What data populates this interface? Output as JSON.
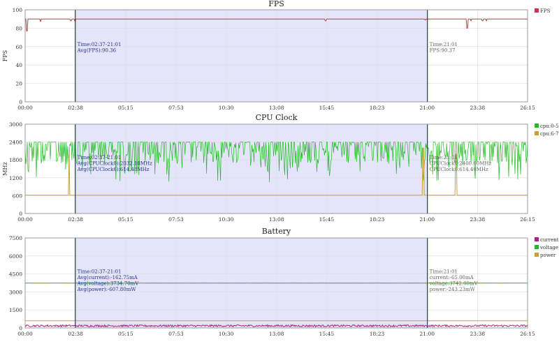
{
  "chart_data": [
    {
      "type": "line",
      "title": "FPS",
      "ylabel": "FPS",
      "ylim": [
        0,
        100
      ],
      "yticks": [
        "0",
        "20",
        "40",
        "60",
        "80",
        "100"
      ],
      "xticks": [
        "00:00",
        "02:38",
        "05:15",
        "07:53",
        "10:30",
        "13:08",
        "15:45",
        "18:23",
        "21:00",
        "23:38",
        "26:15"
      ],
      "selection": {
        "start": "02:37",
        "end": "21:01"
      },
      "series": [
        {
          "name": "FPS",
          "color": "#cc3344",
          "base": 90,
          "low": 90,
          "high": 90,
          "dips": [
            [
              0.1,
              77
            ],
            [
              0.8,
              87
            ],
            [
              2.4,
              88
            ],
            [
              2.6,
              88
            ],
            [
              15.7,
              88
            ],
            [
              20.9,
              89
            ],
            [
              23.1,
              80
            ],
            [
              23.3,
              88
            ],
            [
              23.9,
              88
            ],
            [
              24.1,
              88
            ]
          ]
        }
      ],
      "annotations": [
        {
          "side": "left",
          "lines": [
            "Time:02:37-21:01",
            "Avg(FPS):90.36"
          ]
        },
        {
          "side": "right",
          "lines": [
            "Time:21:01",
            "FPS:90.37"
          ]
        }
      ]
    },
    {
      "type": "line",
      "title": "CPU Clock",
      "ylabel": "MHz",
      "ylim": [
        0,
        3000
      ],
      "yticks": [
        "0",
        "600",
        "1200",
        "1800",
        "2400",
        "3000"
      ],
      "xticks": [
        "00:00",
        "02:38",
        "05:15",
        "07:53",
        "10:30",
        "13:08",
        "15:45",
        "18:23",
        "21:00",
        "23:38",
        "26:15"
      ],
      "selection": {
        "start": "02:37",
        "end": "21:01"
      },
      "series": [
        {
          "name": "cpu:0-5",
          "color": "#22bb22",
          "base": 2400,
          "low": 1050,
          "high": 2400,
          "dips": []
        },
        {
          "name": "cpu:6-7",
          "color": "#c8a030",
          "base": 614,
          "low": 614,
          "high": 614,
          "dips": [
            [
              2.3,
              2000
            ],
            [
              20.8,
              2200
            ],
            [
              22.5,
              2000
            ]
          ]
        }
      ],
      "annotations": [
        {
          "side": "left",
          "lines": [
            "Time:02:37-21:01",
            "Avg(CPUClock0):2032.18MHz",
            "Avg(CPUClock6):614.48MHz"
          ]
        },
        {
          "side": "right",
          "lines": [
            "Time:21:01",
            "CPUClock0:2400.00MHz",
            "CPUClock6:614.40MHz"
          ]
        }
      ]
    },
    {
      "type": "line",
      "title": "Battery",
      "ylabel": "",
      "ylim": [
        0,
        7500
      ],
      "yticks": [
        "0",
        "1500",
        "3000",
        "4500",
        "6000",
        "7500"
      ],
      "xticks": [
        "00:00",
        "02:38",
        "05:15",
        "07:53",
        "10:30",
        "13:08",
        "15:45",
        "18:23",
        "21:00",
        "23:38",
        "26:15"
      ],
      "selection": {
        "start": "02:37",
        "end": "21:01"
      },
      "series": [
        {
          "name": "current",
          "color": "#aa2288",
          "base": 160,
          "low": 100,
          "high": 260,
          "dips": []
        },
        {
          "name": "voltage",
          "color": "#22bb22",
          "base": 3740,
          "low": 3730,
          "high": 3745,
          "dips": []
        },
        {
          "name": "power",
          "color": "#c8a030",
          "base": 600,
          "low": 600,
          "high": 600,
          "dips": []
        }
      ],
      "annotations": [
        {
          "side": "left",
          "lines": [
            "Time:02:37-21:01",
            "Avg(current):-162.75mA",
            "Avg(voltage):3734.70mV",
            "Avg(power):-607.80mW"
          ]
        },
        {
          "side": "right",
          "lines": [
            "Time:21:01",
            "current:-65.00mA",
            "voltage:3742.00mV",
            "power:-243.23mW"
          ]
        }
      ]
    }
  ]
}
